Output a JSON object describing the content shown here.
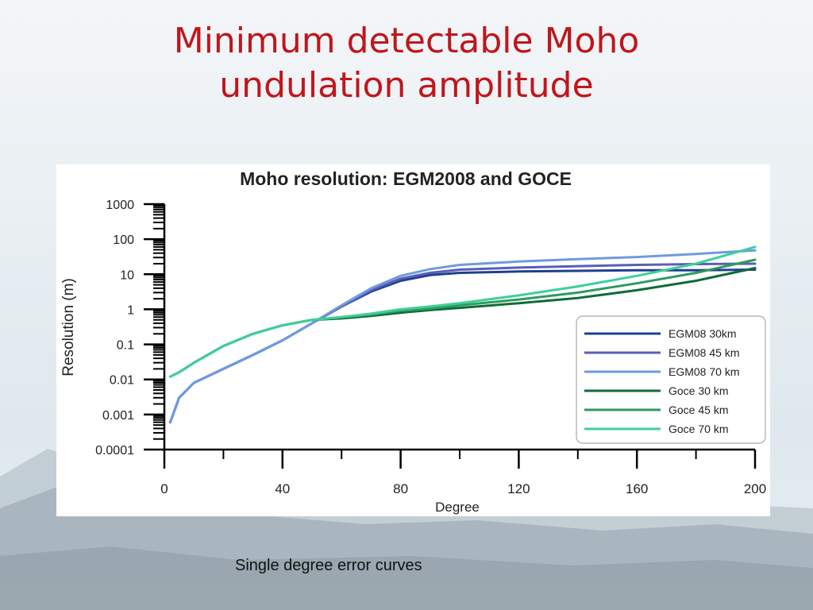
{
  "slide": {
    "title_line1": "Minimum detectable Moho",
    "title_line2": "undulation amplitude",
    "caption": "Single degree error curves"
  },
  "chart_data": {
    "type": "line",
    "title": "Moho resolution: EGM2008 and GOCE",
    "xlabel": "Degree",
    "ylabel": "Resolution (m)",
    "xlim": [
      0,
      200
    ],
    "ylim": [
      0.0001,
      1000
    ],
    "yscale": "log",
    "x_ticks": [
      "0",
      "40",
      "80",
      "120",
      "160",
      "200"
    ],
    "y_ticks": [
      "1000",
      "100",
      "10",
      "1",
      "0.1",
      "0.01",
      "0.001",
      "0.0001"
    ],
    "grid": false,
    "legend_position": "bottom-right",
    "x": [
      2,
      5,
      10,
      20,
      30,
      40,
      50,
      60,
      70,
      80,
      90,
      100,
      120,
      140,
      160,
      180,
      200
    ],
    "series": [
      {
        "name": "EGM08 30km",
        "color": "#1f3f8f",
        "values": [
          0.0006,
          0.003,
          0.008,
          0.02,
          0.05,
          0.13,
          0.4,
          1.2,
          3.2,
          6.5,
          9.5,
          11,
          12,
          12.5,
          13,
          13,
          13.5
        ]
      },
      {
        "name": "EGM08 45 km",
        "color": "#5a5db8",
        "values": [
          0.0006,
          0.003,
          0.008,
          0.02,
          0.05,
          0.13,
          0.4,
          1.2,
          3.5,
          7.5,
          11,
          13.5,
          15.5,
          17,
          18.5,
          19.5,
          20
        ]
      },
      {
        "name": "EGM08 70 km",
        "color": "#6d9be0",
        "values": [
          0.0006,
          0.003,
          0.008,
          0.02,
          0.05,
          0.13,
          0.4,
          1.3,
          4,
          9,
          14,
          18.5,
          23,
          27,
          31,
          38,
          48
        ]
      },
      {
        "name": "Goce 30 km",
        "color": "#0f6b3a",
        "values": [
          0.012,
          0.016,
          0.03,
          0.09,
          0.2,
          0.35,
          0.5,
          0.55,
          0.65,
          0.8,
          0.95,
          1.1,
          1.5,
          2.1,
          3.5,
          6.5,
          15
        ]
      },
      {
        "name": "Goce 45 km",
        "color": "#2e9a5e",
        "values": [
          0.012,
          0.016,
          0.03,
          0.09,
          0.2,
          0.35,
          0.5,
          0.6,
          0.7,
          0.9,
          1.05,
          1.3,
          1.9,
          3.0,
          5.5,
          11,
          26
        ]
      },
      {
        "name": "Goce 70 km",
        "color": "#3fcf9a",
        "values": [
          0.012,
          0.016,
          0.03,
          0.09,
          0.2,
          0.35,
          0.5,
          0.6,
          0.75,
          1.0,
          1.2,
          1.5,
          2.5,
          4.5,
          9,
          20,
          60
        ]
      }
    ]
  }
}
